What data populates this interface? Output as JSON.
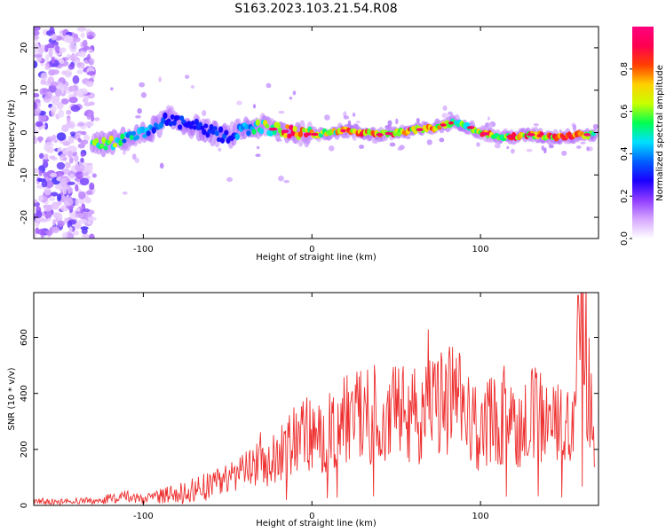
{
  "figure": {
    "title": "S163.2023.103.21.54.R08"
  },
  "chart_data": [
    {
      "type": "heatmap",
      "xlabel": "Height of straight line (km)",
      "ylabel": "Frequency (Hz)",
      "xlim": [
        -165,
        170
      ],
      "ylim": [
        -25,
        25
      ],
      "xticks": [
        -100,
        0,
        100
      ],
      "yticks": [
        -20,
        -10,
        0,
        10,
        20
      ],
      "grid": false,
      "colorbar": {
        "label": "Normalized spectral amplitude",
        "range": [
          0,
          1
        ],
        "ticks": [
          0.0,
          0.2,
          0.4,
          0.6,
          0.8
        ],
        "colormap": [
          "#ffffff",
          "#d6a6ff",
          "#8f3cff",
          "#1b00ff",
          "#0060ff",
          "#00e0ff",
          "#00ff50",
          "#c8ff00",
          "#ffd000",
          "#ff4000",
          "#ff0050",
          "#ff007f"
        ]
      },
      "ridge": {
        "x": [
          -130,
          -120,
          -110,
          -100,
          -90,
          -85,
          -80,
          -70,
          -60,
          -50,
          -40,
          -30,
          -20,
          -10,
          0,
          10,
          20,
          30,
          40,
          50,
          60,
          70,
          80,
          85,
          90,
          100,
          110,
          120,
          130,
          140,
          150,
          160,
          168
        ],
        "y": [
          -3,
          -2.5,
          -1.5,
          -0.5,
          2,
          3.5,
          2.5,
          1.5,
          0,
          -1,
          1,
          1.5,
          0.5,
          0,
          -0.5,
          0,
          0.5,
          0,
          -0.5,
          0,
          0.5,
          1,
          2,
          2.5,
          2,
          0,
          -1,
          -1,
          -0.5,
          -1,
          -1,
          -0.5,
          -0.5
        ],
        "amplitude": [
          0.55,
          0.6,
          0.45,
          0.45,
          0.35,
          0.3,
          0.3,
          0.3,
          0.3,
          0.3,
          0.4,
          0.55,
          0.65,
          0.9,
          0.7,
          0.6,
          0.75,
          0.75,
          0.8,
          0.75,
          0.75,
          0.8,
          0.6,
          0.55,
          0.55,
          0.75,
          0.7,
          0.75,
          0.8,
          0.8,
          0.85,
          0.8,
          0.6
        ]
      },
      "noise_region_x": [
        -165,
        -130
      ]
    },
    {
      "type": "line",
      "xlabel": "Height of straight line (km)",
      "ylabel": "SNR (10 * v/v)",
      "xlim": [
        -165,
        170
      ],
      "ylim": [
        0,
        760
      ],
      "xticks": [
        -100,
        0,
        100
      ],
      "yticks": [
        0,
        200,
        400,
        600
      ],
      "grid": false,
      "series": [
        {
          "color": "#ee3030",
          "x": [
            -165,
            -150,
            -140,
            -130,
            -120,
            -110,
            -100,
            -90,
            -80,
            -70,
            -60,
            -55,
            -50,
            -45,
            -40,
            -35,
            -30,
            -25,
            -20,
            -15,
            -10,
            -5,
            0,
            5,
            10,
            15,
            20,
            25,
            30,
            35,
            40,
            45,
            50,
            55,
            60,
            65,
            70,
            75,
            80,
            85,
            90,
            95,
            100,
            105,
            110,
            115,
            120,
            125,
            130,
            135,
            140,
            145,
            150,
            155,
            160,
            165,
            168
          ],
          "y": [
            15,
            12,
            18,
            15,
            25,
            30,
            20,
            35,
            45,
            55,
            70,
            90,
            95,
            110,
            120,
            140,
            145,
            150,
            180,
            200,
            240,
            260,
            250,
            230,
            260,
            280,
            300,
            320,
            330,
            320,
            340,
            330,
            330,
            350,
            330,
            320,
            350,
            340,
            400,
            380,
            330,
            300,
            250,
            310,
            300,
            320,
            290,
            300,
            320,
            330,
            300,
            280,
            290,
            310,
            700,
            380,
            250
          ]
        }
      ]
    }
  ]
}
